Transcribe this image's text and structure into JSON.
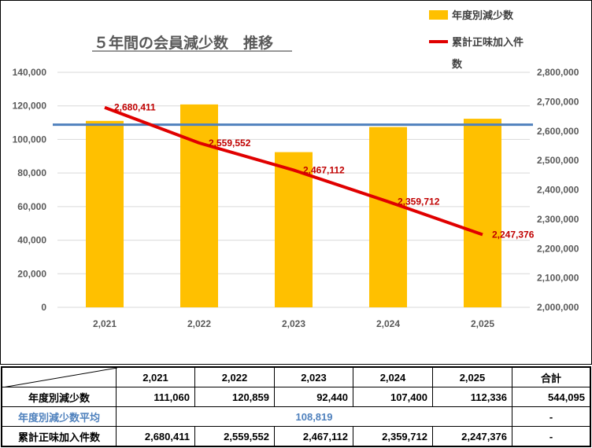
{
  "chart_data": {
    "type": "bar+line",
    "title": "５年間の会員減少数　推移",
    "categories": [
      "2,021",
      "2,022",
      "2,023",
      "2,024",
      "2,025"
    ],
    "bar_series": {
      "name": "年度別減少数",
      "values": [
        111060,
        120859,
        92440,
        107400,
        112336
      ],
      "color": "#ffc000",
      "axis": "left",
      "ylim": [
        0,
        140000
      ],
      "ticks": [
        "0",
        "20,000",
        "40,000",
        "60,000",
        "80,000",
        "100,000",
        "120,000",
        "140,000"
      ]
    },
    "line_series": {
      "name": "累計正味加入件数",
      "legend_label_line1": "累計正味加入件",
      "legend_label_line2": "数",
      "values": [
        2680411,
        2559552,
        2467112,
        2359712,
        2247376
      ],
      "labels": [
        "2,680,411",
        "2,559,552",
        "2,467,112",
        "2,359,712",
        "2,247,376"
      ],
      "color": "#e00000",
      "axis": "right",
      "ylim": [
        2000000,
        2800000
      ],
      "ticks": [
        "2,000,000",
        "2,100,000",
        "2,200,000",
        "2,300,000",
        "2,400,000",
        "2,500,000",
        "2,600,000",
        "2,700,000",
        "2,800,000"
      ]
    },
    "average_line": {
      "value": 108819,
      "color": "#4f81bd",
      "axis": "left"
    },
    "legend_bar_label": "年度別減少数"
  },
  "table": {
    "headers": [
      "2,021",
      "2,022",
      "2,023",
      "2,024",
      "2,025",
      "合計"
    ],
    "rows": [
      {
        "label": "年度別減少数",
        "values": [
          "111,060",
          "120,859",
          "92,440",
          "107,400",
          "112,336",
          "544,095"
        ]
      },
      {
        "label": "年度別減少数平均",
        "average": "108,819",
        "total": "-"
      },
      {
        "label": "累計正味加入件数",
        "values": [
          "2,680,411",
          "2,559,552",
          "2,467,112",
          "2,359,712",
          "2,247,376",
          "-"
        ]
      }
    ]
  }
}
